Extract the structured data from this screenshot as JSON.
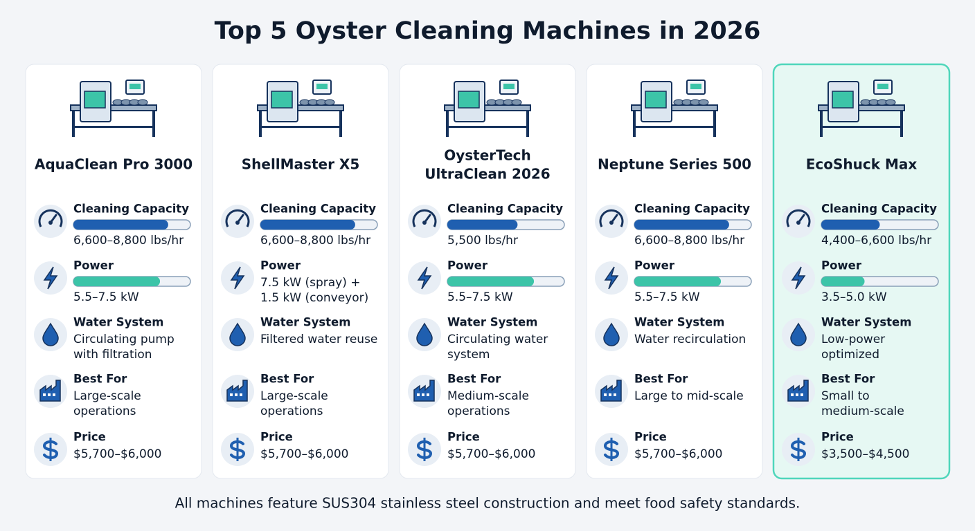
{
  "title": "Top 5 Oyster Cleaning Machines in 2026",
  "cards": [
    {
      "name": [
        "AquaClean Pro 3000"
      ],
      "specs": [
        {
          "label": "Cleaning Capacity",
          "meter": 0.81,
          "value": [
            "6,600–8,800 lbs/hr"
          ]
        },
        {
          "label": "Power",
          "meter": 0.74,
          "value": [
            "5.5–7.5 kW"
          ]
        },
        {
          "label": "Water System",
          "value": [
            "Circulating pump",
            "with filtration"
          ]
        },
        {
          "label": "Best For",
          "value": [
            "Large-scale",
            "operations"
          ]
        },
        {
          "label": "Price",
          "value": [
            "$5,700–$6,000"
          ]
        }
      ]
    },
    {
      "name": [
        "ShellMaster X5"
      ],
      "specs": [
        {
          "label": "Cleaning Capacity",
          "meter": 0.81,
          "value": [
            "6,600–8,800 lbs/hr"
          ]
        },
        {
          "label": "Power",
          "value": [
            "7.5 kW (spray) +",
            "1.5 kW (conveyor)"
          ]
        },
        {
          "label": "Water System",
          "value": [
            "Filtered water reuse"
          ]
        },
        {
          "label": "Best For",
          "value": [
            "Large-scale",
            "operations"
          ]
        },
        {
          "label": "Price",
          "value": [
            "$5,700–$6,000"
          ]
        }
      ]
    },
    {
      "name": [
        "OysterTech",
        "UltraClean 2026"
      ],
      "specs": [
        {
          "label": "Cleaning Capacity",
          "meter": 0.6,
          "value": [
            "5,500 lbs/hr"
          ]
        },
        {
          "label": "Power",
          "meter": 0.74,
          "value": [
            "5.5–7.5 kW"
          ]
        },
        {
          "label": "Water System",
          "value": [
            "Circulating water",
            "system"
          ]
        },
        {
          "label": "Best For",
          "value": [
            "Medium-scale",
            "operations"
          ]
        },
        {
          "label": "Price",
          "value": [
            "$5,700–$6,000"
          ]
        }
      ]
    },
    {
      "name": [
        "Neptune Series 500"
      ],
      "specs": [
        {
          "label": "Cleaning Capacity",
          "meter": 0.81,
          "value": [
            "6,600–8,800 lbs/hr"
          ]
        },
        {
          "label": "Power",
          "meter": 0.74,
          "value": [
            "5.5–7.5 kW"
          ]
        },
        {
          "label": "Water System",
          "value": [
            "Water recirculation"
          ]
        },
        {
          "label": "Best For",
          "value": [
            "Large to mid-scale"
          ]
        },
        {
          "label": "Price",
          "value": [
            "$5,700–$6,000"
          ]
        }
      ]
    },
    {
      "name": [
        "EcoShuck Max"
      ],
      "highlight": true,
      "specs": [
        {
          "label": "Cleaning Capacity",
          "meter": 0.5,
          "value": [
            "4,400–6,600 lbs/hr"
          ]
        },
        {
          "label": "Power",
          "meter": 0.37,
          "value": [
            "3.5–5.0 kW"
          ]
        },
        {
          "label": "Water System",
          "value": [
            "Low-power",
            "optimized"
          ]
        },
        {
          "label": "Best For",
          "value": [
            "Small to",
            "medium-scale"
          ]
        },
        {
          "label": "Price",
          "value": [
            "$3,500–$4,500"
          ]
        }
      ]
    }
  ],
  "footer": "All machines feature SUS304 stainless steel construction and meet food safety standards."
}
